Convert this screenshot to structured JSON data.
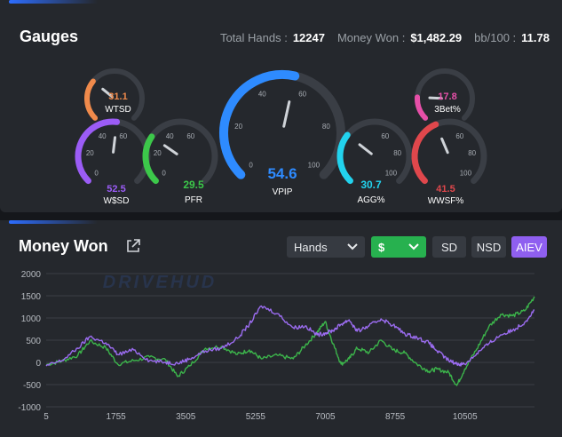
{
  "gauges_panel": {
    "title": "Gauges",
    "total_hands_label": "Total Hands :",
    "total_hands_value": "12247",
    "money_won_label": "Money Won :",
    "money_won_value": "$1,482.29",
    "bb100_label": "bb/100 :",
    "bb100_value": "11.78",
    "accent_color": "#2d6dff"
  },
  "gauges": [
    {
      "id": "wtsd",
      "label": "WTSD",
      "value": "31.1",
      "fraction": 0.311,
      "color": "#f08a4b",
      "ticks": []
    },
    {
      "id": "wsd",
      "label": "W$SD",
      "value": "52.5",
      "fraction": 0.525,
      "color": "#9b5cf6",
      "ticks": [
        "0",
        "20",
        "40",
        "60"
      ]
    },
    {
      "id": "pfr",
      "label": "PFR",
      "value": "29.5",
      "fraction": 0.295,
      "color": "#3cc84a",
      "ticks": [
        "0",
        "20",
        "40",
        "60"
      ]
    },
    {
      "id": "vpip",
      "label": "VPIP",
      "value": "54.6",
      "fraction": 0.546,
      "color": "#2e8bff",
      "ticks": [
        "0",
        "20",
        "40",
        "60",
        "80",
        "100"
      ]
    },
    {
      "id": "agg",
      "label": "AGG%",
      "value": "30.7",
      "fraction": 0.307,
      "color": "#22d3ee",
      "ticks": [
        "60",
        "80",
        "100"
      ]
    },
    {
      "id": "3bet",
      "label": "3Bet%",
      "value": "17.8",
      "fraction": 0.178,
      "color": "#e64fa8",
      "ticks": []
    },
    {
      "id": "wwsf",
      "label": "WWSF%",
      "value": "41.5",
      "fraction": 0.415,
      "color": "#e0474c",
      "ticks": [
        "60",
        "80",
        "100"
      ]
    }
  ],
  "money_panel": {
    "title": "Money Won",
    "hands_dropdown": "Hands",
    "currency_dropdown": "$",
    "toggles": [
      {
        "label": "SD",
        "active": false
      },
      {
        "label": "NSD",
        "active": false
      },
      {
        "label": "AIEV",
        "active": true
      }
    ],
    "watermark": "DRIVEHUD"
  },
  "chart_data": {
    "type": "line",
    "x_ticks": [
      "5",
      "1755",
      "3505",
      "5255",
      "7005",
      "8755",
      "10505"
    ],
    "y_ticks": [
      "2000",
      "1500",
      "1000",
      "500",
      "0",
      "-500",
      "-1000"
    ],
    "xlim": [
      5,
      12247
    ],
    "ylim": [
      -1000,
      2000
    ],
    "grid": true,
    "legend": "none",
    "series": [
      {
        "color": "#3cb44b",
        "x": [
          5,
          400,
          800,
          1100,
          1500,
          1800,
          2200,
          2600,
          3000,
          3300,
          3600,
          4000,
          4400,
          4800,
          5100,
          5400,
          5800,
          6200,
          6500,
          6800,
          7000,
          7200,
          7400,
          7600,
          7800,
          8100,
          8400,
          8700,
          9000,
          9300,
          9600,
          9800,
          10100,
          10300,
          10500,
          10800,
          11100,
          11400,
          11700,
          12000,
          12247
        ],
        "y": [
          -50,
          30,
          160,
          480,
          330,
          -40,
          40,
          120,
          60,
          -320,
          -80,
          320,
          360,
          180,
          280,
          80,
          160,
          80,
          380,
          680,
          920,
          420,
          -40,
          80,
          320,
          220,
          500,
          280,
          210,
          -40,
          -200,
          -150,
          -230,
          -520,
          -150,
          300,
          800,
          1080,
          1050,
          1160,
          1480
        ]
      },
      {
        "color": "#9b6cf0",
        "x": [
          5,
          400,
          800,
          1100,
          1500,
          1800,
          2200,
          2600,
          3000,
          3300,
          3600,
          4000,
          4400,
          4800,
          5100,
          5400,
          5800,
          6200,
          6500,
          6800,
          7000,
          7200,
          7400,
          7600,
          7800,
          8100,
          8400,
          8700,
          9000,
          9300,
          9600,
          9800,
          10100,
          10300,
          10500,
          10800,
          11100,
          11400,
          11700,
          12000,
          12247
        ],
        "y": [
          -80,
          40,
          320,
          580,
          440,
          180,
          280,
          40,
          0,
          -20,
          80,
          260,
          320,
          540,
          860,
          1270,
          1100,
          780,
          820,
          620,
          660,
          720,
          860,
          960,
          700,
          820,
          980,
          840,
          640,
          560,
          440,
          260,
          40,
          -30,
          -40,
          200,
          420,
          620,
          720,
          900,
          1180
        ]
      }
    ]
  }
}
